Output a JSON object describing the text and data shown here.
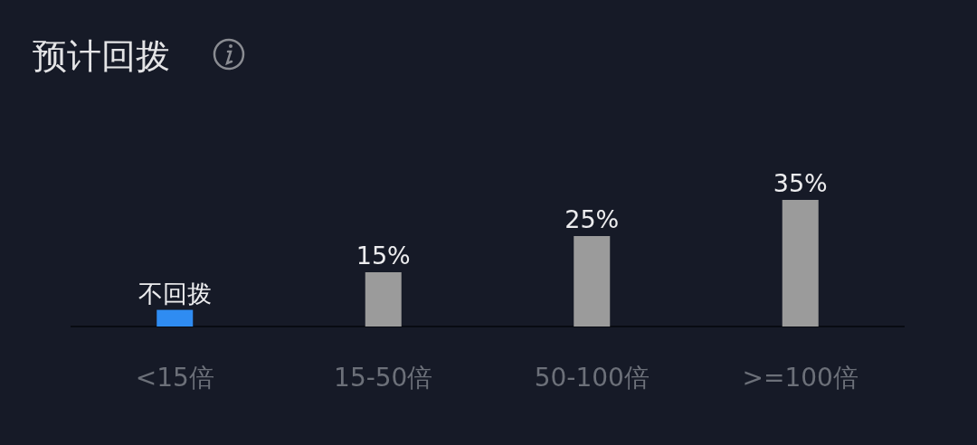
{
  "chart_data": {
    "type": "bar",
    "title": "预计回拨",
    "categories": [
      "<15倍",
      "15-50倍",
      "50-100倍",
      ">=100倍"
    ],
    "values": [
      4.6,
      15,
      25,
      35
    ],
    "colors": [
      "#2f8cf2",
      "#9b9b9b",
      "#9b9b9b",
      "#9b9b9b"
    ],
    "value_labels": [
      "不回拨",
      "15%",
      "25%",
      "35%"
    ]
  }
}
